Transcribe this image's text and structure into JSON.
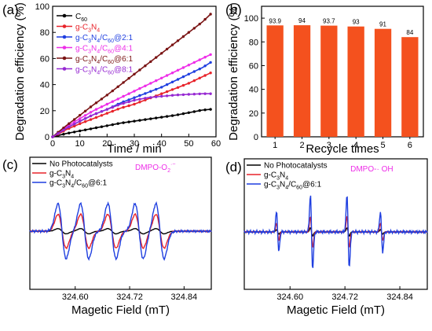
{
  "panels": [
    {
      "letter": "(a)"
    },
    {
      "letter": "(b)"
    },
    {
      "letter": "(c)"
    },
    {
      "letter": "(d)"
    }
  ],
  "chart_data": [
    {
      "id": "a",
      "type": "line",
      "xlabel": "Time / min",
      "ylabel": "Degradation efficiency (%)",
      "xlim": [
        0,
        60
      ],
      "ylim": [
        0,
        100
      ],
      "xticks": [
        0,
        10,
        20,
        30,
        40,
        50,
        60
      ],
      "yticks": [
        0,
        20,
        40,
        60,
        80,
        100
      ],
      "legend_position": "top-left",
      "series": [
        {
          "name": "C60",
          "name_parts": [
            [
              "C",
              ""
            ],
            [
              "60",
              "sub"
            ]
          ],
          "color": "#000000",
          "x": [
            0,
            2,
            5,
            10,
            15,
            20,
            25,
            30,
            35,
            40,
            45,
            50,
            55,
            58
          ],
          "y": [
            0,
            1,
            2.5,
            4.5,
            6.5,
            8.5,
            10.5,
            12,
            13.5,
            15,
            16.5,
            18.5,
            20.5,
            21
          ]
        },
        {
          "name": "g-C3N4",
          "name_parts": [
            [
              "g-C",
              ""
            ],
            [
              "3",
              "sub"
            ],
            [
              "N",
              ""
            ],
            [
              "4",
              "sub"
            ]
          ],
          "color": "#e8232a",
          "x": [
            0,
            2,
            5,
            10,
            15,
            20,
            25,
            30,
            35,
            40,
            45,
            50,
            55,
            58
          ],
          "y": [
            0,
            2,
            5.5,
            10,
            14,
            18,
            22,
            25,
            29,
            33,
            37,
            41,
            46,
            49
          ]
        },
        {
          "name": "g-C3N4/C60@2:1",
          "name_parts": [
            [
              "g-C",
              ""
            ],
            [
              "3",
              "sub"
            ],
            [
              "N",
              ""
            ],
            [
              "4",
              "sub"
            ],
            [
              "/C",
              ""
            ],
            [
              "60",
              "sub"
            ],
            [
              "@2:1",
              ""
            ]
          ],
          "color": "#1f3fe0",
          "x": [
            0,
            2,
            5,
            10,
            15,
            20,
            25,
            30,
            35,
            40,
            45,
            50,
            55,
            58
          ],
          "y": [
            0,
            2.5,
            6.5,
            12,
            17,
            21,
            26,
            30,
            34,
            38,
            43,
            48,
            53,
            57
          ]
        },
        {
          "name": "g-C3N4/C60@4:1",
          "name_parts": [
            [
              "g-C",
              ""
            ],
            [
              "3",
              "sub"
            ],
            [
              "N",
              ""
            ],
            [
              "4",
              "sub"
            ],
            [
              "/C",
              ""
            ],
            [
              "60",
              "sub"
            ],
            [
              "@4:1",
              ""
            ]
          ],
          "color": "#ee2ee8",
          "x": [
            0,
            2,
            5,
            10,
            15,
            20,
            25,
            30,
            35,
            40,
            45,
            50,
            55,
            58
          ],
          "y": [
            0,
            3,
            7.5,
            14,
            20,
            25,
            30,
            35,
            40,
            45,
            50,
            55,
            60,
            63
          ]
        },
        {
          "name": "g-C3N4/C60@6:1",
          "name_parts": [
            [
              "g-C",
              ""
            ],
            [
              "3",
              "sub"
            ],
            [
              "N",
              ""
            ],
            [
              "4",
              "sub"
            ],
            [
              "/C",
              ""
            ],
            [
              "60",
              "sub"
            ],
            [
              "@6:1",
              ""
            ]
          ],
          "color": "#7a1414",
          "x": [
            0,
            2,
            5,
            10,
            15,
            20,
            25,
            30,
            35,
            40,
            45,
            50,
            55,
            58
          ],
          "y": [
            0,
            3.5,
            8.5,
            16.5,
            24.5,
            32,
            40,
            48,
            56,
            64,
            72,
            80,
            88,
            94
          ]
        },
        {
          "name": "g-C3N4/C60@8:1",
          "name_parts": [
            [
              "g-C",
              ""
            ],
            [
              "3",
              "sub"
            ],
            [
              "N",
              ""
            ],
            [
              "4",
              "sub"
            ],
            [
              "/C",
              ""
            ],
            [
              "60",
              "sub"
            ],
            [
              "@8:1",
              ""
            ]
          ],
          "color": "#9628d2",
          "x": [
            0,
            2,
            5,
            10,
            15,
            20,
            25,
            30,
            35,
            40,
            45,
            50,
            55,
            58
          ],
          "y": [
            0,
            2.5,
            6.5,
            12,
            17,
            21,
            25,
            28,
            30,
            31,
            32,
            32.5,
            33,
            33
          ]
        }
      ]
    },
    {
      "id": "b",
      "type": "bar",
      "xlabel": "Recycle times",
      "ylabel": "Degradation efficiency (%)",
      "ylim": [
        0,
        110
      ],
      "yticks": [
        0,
        20,
        40,
        60,
        80,
        100
      ],
      "categories": [
        "1",
        "2",
        "3",
        "4",
        "5",
        "6"
      ],
      "values": [
        93.9,
        94,
        93.7,
        93,
        91,
        84
      ],
      "value_labels": [
        "93.9",
        "94",
        "93.7",
        "93",
        "91",
        "84"
      ],
      "bar_color": "#f4511e"
    },
    {
      "id": "c",
      "type": "line",
      "xlabel": "Magetic Field (mT)",
      "xlim": [
        324.5,
        324.9
      ],
      "xticks": [
        324.6,
        324.72,
        324.84
      ],
      "xtick_labels": [
        "324.60",
        "324.72",
        "324.84"
      ],
      "annotation": {
        "parts": [
          [
            "DMPO-O",
            ""
          ],
          [
            "2",
            "sub"
          ],
          [
            "·−",
            "sup"
          ]
        ],
        "color": "#ee2ee8"
      },
      "legend_position": "top-left",
      "signal": {
        "lines": [
          324.571,
          324.621,
          324.681,
          324.741,
          324.787
        ],
        "width": 0.009
      },
      "series": [
        {
          "name": "No Photocatalysts",
          "name_parts": [
            [
              "No Photocatalysts",
              ""
            ]
          ],
          "color": "#000000",
          "amplitude": 0.05
        },
        {
          "name": "g-C3N4",
          "name_parts": [
            [
              "g-C",
              ""
            ],
            [
              "3",
              "sub"
            ],
            [
              "N",
              ""
            ],
            [
              "4",
              "sub"
            ]
          ],
          "color": "#e8232a",
          "amplitude": 0.32
        },
        {
          "name": "g-C3N4/C60@6:1",
          "name_parts": [
            [
              "g-C",
              ""
            ],
            [
              "3",
              "sub"
            ],
            [
              "N",
              ""
            ],
            [
              "4",
              "sub"
            ],
            [
              "/C",
              ""
            ],
            [
              "60",
              "sub"
            ],
            [
              "@6:1",
              ""
            ]
          ],
          "color": "#1f3fe0",
          "amplitude": 0.52
        }
      ]
    },
    {
      "id": "d",
      "type": "line",
      "xlabel": "Magetic Field (mT)",
      "xlim": [
        324.5,
        324.9
      ],
      "xticks": [
        324.6,
        324.72,
        324.84
      ],
      "xtick_labels": [
        "324.60",
        "324.72",
        "324.84"
      ],
      "annotation": {
        "parts": [
          [
            "DMPO-· OH",
            ""
          ]
        ],
        "color": "#ee2ee8"
      },
      "legend_position": "top-left",
      "signal": {
        "lines": [
          324.573,
          324.647,
          324.727,
          324.8
        ],
        "heights": [
          0.55,
          1.0,
          1.0,
          0.55
        ],
        "width": 0.0025
      },
      "series": [
        {
          "name": "No Photocatalysts",
          "name_parts": [
            [
              "No Photocatalysts",
              ""
            ]
          ],
          "color": "#000000",
          "amplitude": 0.08
        },
        {
          "name": "g-C3N4",
          "name_parts": [
            [
              "g-C",
              ""
            ],
            [
              "3",
              "sub"
            ],
            [
              "N",
              ""
            ],
            [
              "4",
              "sub"
            ]
          ],
          "color": "#e8232a",
          "amplitude": 0.3
        },
        {
          "name": "g-C3N4/C60@6:1",
          "name_parts": [
            [
              "g-C",
              ""
            ],
            [
              "3",
              "sub"
            ],
            [
              "N",
              ""
            ],
            [
              "4",
              "sub"
            ],
            [
              "/C",
              ""
            ],
            [
              "60",
              "sub"
            ],
            [
              "@6:1",
              ""
            ]
          ],
          "color": "#1f3fe0",
          "amplitude": 0.7
        }
      ]
    }
  ]
}
